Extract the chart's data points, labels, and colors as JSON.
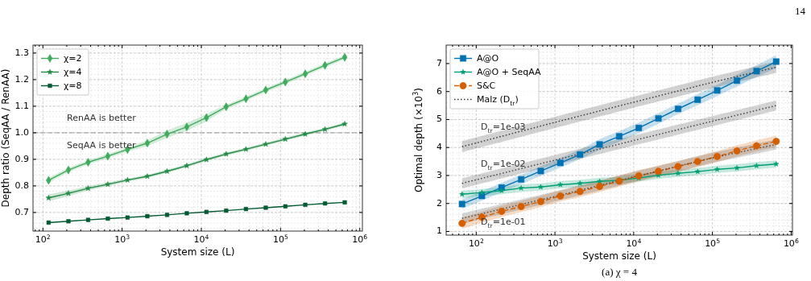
{
  "chart_data": [
    {
      "type": "line",
      "xlabel": "System size (L)",
      "ylabel": "Depth ratio (SeqAA / RenAA)",
      "log": "x",
      "grid": true,
      "legend": "top left",
      "x": [
        118,
        210,
        372,
        660,
        1170,
        2080,
        3690,
        6550,
        11600,
        20600,
        36600,
        65000,
        115000,
        205000,
        364000,
        646000
      ],
      "xlim": [
        75,
        1080000
      ],
      "xticks": [
        {
          "value": 100,
          "label": "10$^{2}$"
        },
        {
          "value": 1000,
          "label": "10$^{3}$"
        },
        {
          "value": 10000,
          "label": "10$^{4}$"
        },
        {
          "value": 100000,
          "label": "10$^{5}$"
        },
        {
          "value": 1000000,
          "label": "10$^{6}$"
        }
      ],
      "ylim": [
        0.63,
        1.33
      ],
      "yticks": [
        0.7,
        0.8,
        0.9,
        {
          "value": 1,
          "label": "1.0"
        },
        1.1,
        1.2,
        1.3
      ],
      "series": [
        {
          "name": "χ=2",
          "color": "#41ab5d",
          "marker": "diamond",
          "values": [
            0.821,
            0.86,
            0.889,
            0.912,
            0.937,
            0.961,
            0.995,
            1.022,
            1.057,
            1.098,
            1.128,
            1.161,
            1.191,
            1.222,
            1.254,
            1.284
          ],
          "lower": [
            0.811,
            0.852,
            0.881,
            0.904,
            0.929,
            0.95,
            0.981,
            1.007,
            1.043,
            1.09,
            1.12,
            1.153,
            1.183,
            1.214,
            1.246,
            1.276
          ],
          "upper": [
            0.831,
            0.868,
            0.897,
            0.92,
            0.945,
            0.972,
            1.009,
            1.037,
            1.071,
            1.106,
            1.136,
            1.169,
            1.199,
            1.23,
            1.262,
            1.292
          ]
        },
        {
          "name": "χ=4",
          "color": "#238b45",
          "marker": "star",
          "values": [
            0.755,
            0.772,
            0.791,
            0.806,
            0.822,
            0.836,
            0.855,
            0.876,
            0.899,
            0.92,
            0.938,
            0.957,
            0.976,
            0.995,
            1.013,
            1.033
          ],
          "lower": [
            0.742,
            0.762,
            0.783,
            0.799,
            0.816,
            0.83,
            0.849,
            0.87,
            0.893,
            0.914,
            0.932,
            0.951,
            0.97,
            0.989,
            1.007,
            1.027
          ],
          "upper": [
            0.768,
            0.782,
            0.799,
            0.813,
            0.828,
            0.842,
            0.861,
            0.882,
            0.905,
            0.926,
            0.944,
            0.963,
            0.982,
            1.001,
            1.019,
            1.039
          ]
        },
        {
          "name": "χ=8",
          "color": "#005a32",
          "marker": "square",
          "values": [
            0.662,
            0.667,
            0.672,
            0.677,
            0.681,
            0.686,
            0.691,
            0.697,
            0.702,
            0.707,
            0.713,
            0.718,
            0.723,
            0.729,
            0.734,
            0.738
          ]
        }
      ],
      "ref_lines": [
        {
          "axis": "y",
          "value": 1,
          "color": "#999999",
          "line_style": "dashed"
        }
      ],
      "annotations": [
        "RenAA is better",
        "SeqAA is better"
      ]
    },
    {
      "type": "line",
      "xlabel": "System size (L)",
      "ylabel": "Optimal depth (×10$^{3}$)",
      "log": "x",
      "grid": true,
      "legend": "top left",
      "x": [
        66,
        118,
        210,
        372,
        660,
        1170,
        2080,
        3690,
        6550,
        11600,
        20600,
        36600,
        65000,
        115000,
        205000,
        364000,
        646000
      ],
      "xlim": [
        41.5,
        1040000
      ],
      "xticks": [
        {
          "value": 100,
          "label": "10$^{2}$"
        },
        {
          "value": 1000,
          "label": "10$^{3}$"
        },
        {
          "value": 10000,
          "label": "10$^{4}$"
        },
        {
          "value": 100000,
          "label": "10$^{5}$"
        },
        {
          "value": 1000000,
          "label": "10$^{6}$"
        }
      ],
      "ylim": [
        0.87,
        7.66
      ],
      "yticks": [
        1,
        2,
        3,
        4,
        5,
        6,
        7
      ],
      "series": [
        {
          "name": "A@O",
          "color": "#0072b2",
          "marker": "square",
          "values": [
            1.98,
            2.27,
            2.57,
            2.86,
            3.16,
            3.45,
            3.75,
            4.11,
            4.4,
            4.7,
            5.04,
            5.38,
            5.71,
            6.04,
            6.39,
            6.73,
            7.07
          ],
          "lower": [
            1.81,
            2.1,
            2.4,
            2.69,
            2.99,
            3.28,
            3.58,
            3.92,
            4.21,
            4.51,
            4.85,
            5.19,
            5.51,
            5.84,
            6.18,
            6.52,
            6.84
          ],
          "upper": [
            2.15,
            2.44,
            2.74,
            3.03,
            3.33,
            3.62,
            3.92,
            4.3,
            4.59,
            4.89,
            5.23,
            5.57,
            5.91,
            6.24,
            6.6,
            6.94,
            7.3
          ]
        },
        {
          "name": "A@O + SeqAA",
          "color": "#009e73",
          "marker": "star",
          "values": [
            2.33,
            2.39,
            2.46,
            2.55,
            2.59,
            2.67,
            2.72,
            2.79,
            2.83,
            2.91,
            3.01,
            3.08,
            3.14,
            3.22,
            3.27,
            3.35,
            3.41
          ],
          "lower": [
            2.2,
            2.26,
            2.33,
            2.42,
            2.46,
            2.54,
            2.59,
            2.66,
            2.7,
            2.78,
            2.88,
            2.95,
            3.01,
            3.09,
            3.14,
            3.22,
            3.28
          ],
          "upper": [
            2.46,
            2.52,
            2.59,
            2.68,
            2.72,
            2.8,
            2.85,
            2.92,
            2.96,
            3.04,
            3.14,
            3.21,
            3.27,
            3.35,
            3.4,
            3.48,
            3.54
          ]
        },
        {
          "name": "S&C",
          "color": "#d55e00",
          "marker": "circle",
          "line_style": "dashed",
          "values": [
            1.29,
            1.51,
            1.72,
            1.89,
            2.07,
            2.27,
            2.43,
            2.61,
            2.8,
            2.99,
            3.15,
            3.32,
            3.5,
            3.68,
            3.88,
            4.06,
            4.22
          ],
          "lower": [
            1.09,
            1.31,
            1.52,
            1.69,
            1.87,
            2.07,
            2.23,
            2.41,
            2.6,
            2.79,
            2.95,
            3.12,
            3.3,
            3.48,
            3.68,
            3.86,
            4.02
          ],
          "upper": [
            1.49,
            1.71,
            1.92,
            2.09,
            2.27,
            2.47,
            2.63,
            2.81,
            3.0,
            3.19,
            3.35,
            3.52,
            3.7,
            3.88,
            4.08,
            4.26,
            4.42
          ]
        },
        {
          "name": "Malz (D$_{tr}$)",
          "color": "#333333",
          "marker": "none",
          "line_style": "dotted",
          "x": [
            66,
            1000,
            10000,
            100000,
            646000
          ],
          "values": [
            4.03,
            4.9,
            5.62,
            6.33,
            6.87
          ],
          "lower": [
            3.83,
            4.7,
            5.42,
            6.13,
            6.67
          ],
          "upper": [
            4.23,
            5.1,
            5.82,
            6.53,
            7.07
          ]
        },
        {
          "color": "#3d3d3d",
          "marker": "none",
          "line_style": "dotted",
          "x": [
            66,
            1000,
            10000,
            100000,
            646000
          ],
          "values": [
            2.72,
            3.55,
            4.25,
            4.94,
            5.5
          ],
          "lower": [
            2.54,
            3.37,
            4.07,
            4.76,
            5.32
          ],
          "upper": [
            2.9,
            3.73,
            4.43,
            5.12,
            5.68
          ]
        },
        {
          "color": "#474747",
          "marker": "none",
          "line_style": "dotted",
          "x": [
            66,
            1000,
            10000,
            100000,
            646000
          ],
          "values": [
            1.47,
            2.25,
            2.95,
            3.63,
            4.11
          ],
          "lower": [
            1.29,
            2.07,
            2.77,
            3.45,
            3.93
          ],
          "upper": [
            1.65,
            2.43,
            3.13,
            3.81,
            4.29
          ]
        }
      ],
      "annotations": [
        "D$_{tr}$=1e-03",
        "D$_{tr}$=1e-02",
        "D$_{tr}$=1e-01",
        "(a) χ = 4",
        "14"
      ]
    }
  ]
}
